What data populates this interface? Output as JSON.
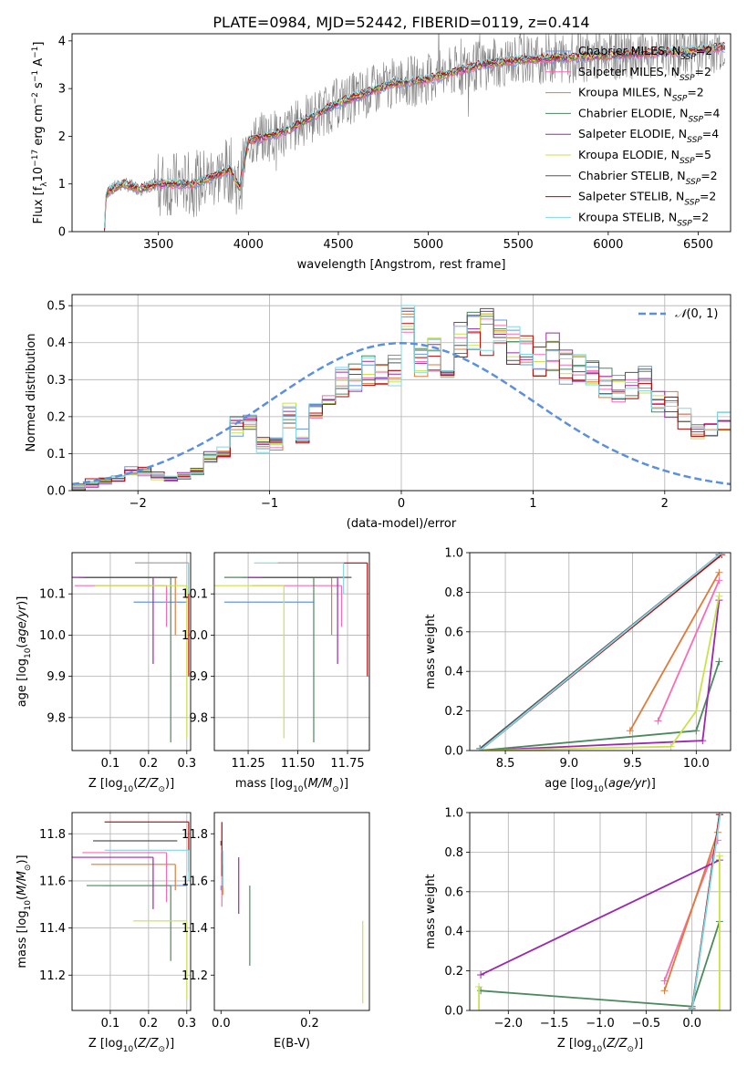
{
  "title": "PLATE=0984, MJD=52442, FIBERID=0119, z=0.414",
  "colors": {
    "Chabrier MILES": "#6495ed",
    "Salpeter MILES": "#ff69b4",
    "Kroupa MILES": "#e07b39",
    "Chabrier ELODIE": "#4a8a5c",
    "Salpeter ELODIE": "#9c27b0",
    "Kroupa ELODIE": "#c8e34a",
    "Chabrier STELIB": "#555555",
    "Salpeter STELIB": "#c00000",
    "Kroupa STELIB": "#7fd8e6",
    "data": "#808080",
    "gauss": "#5b8fe0"
  },
  "chart_data": [
    {
      "type": "line",
      "panel": "spectrum",
      "title": "PLATE=0984, MJD=52442, FIBERID=0119, z=0.414",
      "xlabel": "wavelength [Angstrom, rest frame]",
      "ylabel": "Flux [f_λ 10^-17 erg cm^-2 s^-1 A^-1]",
      "xlim": [
        3020,
        6680
      ],
      "ylim": [
        0,
        4.15
      ],
      "xticks": [
        3500,
        4000,
        4500,
        5000,
        5500,
        6000,
        6500
      ],
      "yticks": [
        0,
        1,
        2,
        3,
        4
      ],
      "grid": false,
      "legend_position": "right",
      "series": [
        {
          "name": "Chabrier MILES, N_SSP=2"
        },
        {
          "name": "Salpeter MILES, N_SSP=2"
        },
        {
          "name": "Kroupa MILES, N_SSP=2"
        },
        {
          "name": "Chabrier ELODIE, N_SSP=4"
        },
        {
          "name": "Salpeter ELODIE, N_SSP=4"
        },
        {
          "name": "Kroupa ELODIE, N_SSP=5"
        },
        {
          "name": "Chabrier STELIB, N_SSP=2"
        },
        {
          "name": "Salpeter STELIB, N_SSP=2"
        },
        {
          "name": "Kroupa STELIB, N_SSP=2"
        }
      ],
      "model_anchor": [
        [
          3200,
          0.0
        ],
        [
          3210,
          0.82
        ],
        [
          3300,
          1.0
        ],
        [
          3400,
          0.9
        ],
        [
          3500,
          1.0
        ],
        [
          3700,
          1.0
        ],
        [
          3900,
          1.3
        ],
        [
          3950,
          0.9
        ],
        [
          4000,
          1.9
        ],
        [
          4200,
          2.1
        ],
        [
          4500,
          2.7
        ],
        [
          4800,
          3.1
        ],
        [
          5000,
          3.2
        ],
        [
          5300,
          3.5
        ],
        [
          5500,
          3.6
        ],
        [
          6000,
          3.7
        ],
        [
          6500,
          3.8
        ],
        [
          6680,
          3.9
        ]
      ]
    },
    {
      "type": "line",
      "panel": "residual-histogram",
      "xlabel": "(data-model)/error",
      "ylabel": "Normed distribution",
      "xlim": [
        -2.5,
        2.5
      ],
      "ylim": [
        0,
        0.53
      ],
      "xticks": [
        -2,
        -1,
        0,
        1,
        2
      ],
      "yticks": [
        0.0,
        0.1,
        0.2,
        0.3,
        0.4,
        0.5
      ],
      "grid": true,
      "legend_position": "top-right",
      "legend": "N(0,1)",
      "bins_left": -2.5,
      "bin_width": 0.1,
      "histogram": [
        0.01,
        0.02,
        0.03,
        0.03,
        0.05,
        0.05,
        0.04,
        0.03,
        0.04,
        0.05,
        0.09,
        0.1,
        0.18,
        0.18,
        0.12,
        0.13,
        0.2,
        0.15,
        0.21,
        0.26,
        0.29,
        0.31,
        0.32,
        0.32,
        0.33,
        0.34,
        0.34,
        0.37,
        0.34,
        0.41,
        0.45,
        0.43,
        0.41,
        0.4,
        0.38,
        0.35,
        0.37,
        0.34,
        0.33,
        0.31,
        0.29,
        0.27,
        0.28,
        0.3,
        0.24,
        0.23,
        0.2,
        0.16,
        0.17,
        0.18
      ]
    },
    {
      "type": "scatter",
      "panel": "Z-age",
      "xlabel": "Z [log10(Z/Z☉)]",
      "ylabel": "age [log10(age/yr)]",
      "xlim": [
        0.0,
        0.31
      ],
      "ylim": [
        9.72,
        10.2
      ],
      "xticks": [
        0.1,
        0.2,
        0.3
      ],
      "yticks": [
        9.8,
        9.9,
        10.0,
        10.1
      ],
      "grid": true
    },
    {
      "type": "scatter",
      "panel": "mass-age",
      "xlabel": "mass [log10(M/M☉)]",
      "xlim": [
        11.08,
        11.86
      ],
      "ylim": [
        9.72,
        10.2
      ],
      "xticks": [
        11.25,
        11.5,
        11.75
      ],
      "yticks": [
        9.8,
        9.9,
        10.0,
        10.1
      ],
      "grid": true
    },
    {
      "type": "line",
      "panel": "age-massweight",
      "xlabel": "age [log10(age/yr)]",
      "ylabel": "mass weight",
      "xlim": [
        8.22,
        10.27
      ],
      "ylim": [
        0,
        1.0
      ],
      "xticks": [
        8.5,
        9.0,
        9.5,
        10.0
      ],
      "yticks": [
        0.0,
        0.2,
        0.4,
        0.6,
        0.8,
        1.0
      ],
      "grid": true
    },
    {
      "type": "scatter",
      "panel": "Z-mass",
      "xlabel": "Z [log10(Z/Z☉)]",
      "ylabel": "mass [log10(M/M☉)]",
      "xlim": [
        0.0,
        0.31
      ],
      "ylim": [
        11.05,
        11.89
      ],
      "xticks": [
        0.1,
        0.2,
        0.3
      ],
      "yticks": [
        11.2,
        11.4,
        11.6,
        11.8
      ],
      "grid": true
    },
    {
      "type": "scatter",
      "panel": "EBV-mass",
      "xlabel": "E(B-V)",
      "xlim": [
        -0.015,
        0.335
      ],
      "ylim": [
        11.05,
        11.89
      ],
      "xticks": [
        0.0,
        0.2
      ],
      "yticks": [
        11.2,
        11.4,
        11.6,
        11.8
      ],
      "grid": false
    },
    {
      "type": "line",
      "panel": "Z-massweight",
      "xlabel": "Z [log10(Z/Z☉)]",
      "ylabel": "mass weight",
      "xlim": [
        -2.42,
        0.42
      ],
      "ylim": [
        0,
        1.0
      ],
      "xticks": [
        -2.0,
        -1.5,
        -1.0,
        -0.5,
        0.0
      ],
      "yticks": [
        0.0,
        0.2,
        0.4,
        0.6,
        0.8,
        1.0
      ],
      "grid": true
    }
  ],
  "models": [
    {
      "key": "Chabrier MILES",
      "Z": 0.301,
      "age": 10.08,
      "age_lo": 10.08,
      "mass": 11.58,
      "mass_lo": 11.58,
      "ebv": 0.0,
      "age_pts": [
        [
          8.3,
          0.0
        ],
        [
          10.18,
          0.99
        ]
      ],
      "Z_pts": [
        [
          0.0,
          0.0
        ],
        [
          0.3,
          0.99
        ]
      ]
    },
    {
      "key": "Salpeter MILES",
      "Z": 0.247,
      "age": 10.12,
      "age_lo": 10.02,
      "mass": 11.72,
      "mass_lo": 11.51,
      "ebv": 0.0,
      "age_pts": [
        [
          9.7,
          0.15
        ],
        [
          10.18,
          0.86
        ]
      ],
      "Z_pts": [
        [
          -0.3,
          0.15
        ],
        [
          0.28,
          0.86
        ]
      ]
    },
    {
      "key": "Kroupa MILES",
      "Z": 0.27,
      "age": 10.14,
      "age_lo": 10.0,
      "mass": 11.67,
      "mass_lo": 11.56,
      "ebv": 0.0,
      "age_pts": [
        [
          9.48,
          0.1
        ],
        [
          10.18,
          0.9
        ]
      ],
      "Z_pts": [
        [
          -0.3,
          0.1
        ],
        [
          0.28,
          0.9
        ]
      ]
    },
    {
      "key": "Chabrier ELODIE",
      "Z": 0.258,
      "age": 10.14,
      "age_lo": 9.74,
      "mass": 11.58,
      "mass_lo": 11.26,
      "ebv": 0.065,
      "age_pts": [
        [
          8.3,
          0.0
        ],
        [
          10.0,
          0.1
        ],
        [
          10.18,
          0.45
        ]
      ],
      "Z_pts": [
        [
          -2.3,
          0.1
        ],
        [
          0.0,
          0.02
        ],
        [
          0.3,
          0.45
        ]
      ]
    },
    {
      "key": "Salpeter ELODIE",
      "Z": 0.212,
      "age": 10.14,
      "age_lo": 9.93,
      "mass": 11.7,
      "mass_lo": 11.48,
      "ebv": 0.04,
      "age_pts": [
        [
          8.3,
          0.0
        ],
        [
          10.05,
          0.05
        ],
        [
          10.18,
          0.76
        ]
      ],
      "Z_pts": [
        [
          -2.3,
          0.18
        ],
        [
          0.3,
          0.76
        ]
      ]
    },
    {
      "key": "Kroupa ELODIE",
      "Z": 0.3,
      "age": 10.12,
      "age_lo": 9.75,
      "mass": 11.43,
      "mass_lo": 11.1,
      "ebv": 0.32,
      "age_pts": [
        [
          8.3,
          0.0
        ],
        [
          9.8,
          0.02
        ],
        [
          10.0,
          0.2
        ],
        [
          10.18,
          0.78
        ]
      ],
      "Z_pts": [
        [
          -2.32,
          0.0
        ],
        [
          -2.32,
          0.12
        ],
        [
          -2.32,
          0.0
        ],
        [
          0.3,
          0.0
        ],
        [
          0.3,
          0.78
        ]
      ]
    },
    {
      "key": "Chabrier STELIB",
      "Z": 0.275,
      "age": 10.14,
      "age_lo": 10.14,
      "mass": 11.77,
      "mass_lo": 11.77,
      "ebv": 0.0,
      "age_pts": [
        [
          8.3,
          0.01
        ],
        [
          10.18,
          0.99
        ]
      ],
      "Z_pts": [
        [
          0.0,
          0.01
        ],
        [
          0.3,
          0.99
        ]
      ]
    },
    {
      "key": "Salpeter STELIB",
      "Z": 0.305,
      "age": 10.175,
      "age_lo": 9.9,
      "mass": 11.85,
      "mass_lo": 11.64,
      "ebv": 0.0,
      "age_pts": [
        [
          8.3,
          0.0
        ],
        [
          10.2,
          0.99
        ]
      ],
      "Z_pts": [
        [
          0.0,
          0.0
        ],
        [
          0.3,
          0.99
        ]
      ]
    },
    {
      "key": "Kroupa STELIB",
      "Z": 0.305,
      "age": 10.175,
      "age_lo": 10.1,
      "mass": 11.73,
      "mass_lo": 11.6,
      "ebv": 0.0,
      "age_pts": [
        [
          8.3,
          0.0
        ],
        [
          10.2,
          1.0
        ]
      ],
      "Z_pts": [
        [
          0.0,
          0.0
        ],
        [
          0.31,
          1.0
        ]
      ]
    }
  ]
}
